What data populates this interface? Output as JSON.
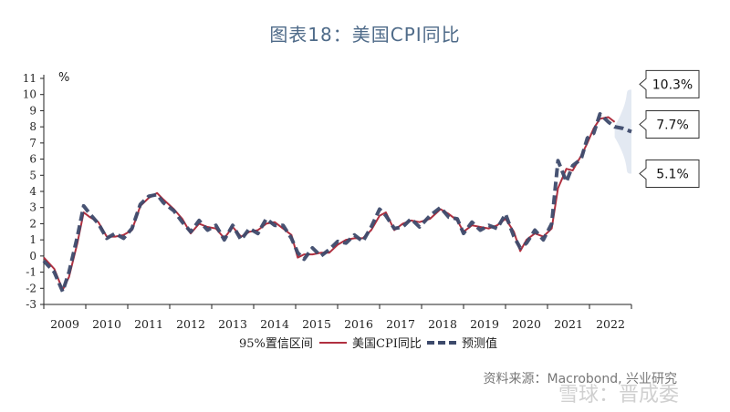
{
  "title": "图表18：美国CPI同比",
  "source": "资料来源：Macrobond, 兴业研究",
  "watermark": "雪球：晋成委",
  "chart_data": {
    "type": "line",
    "title": "图表18：美国CPI同比",
    "ylabel": "%",
    "ylim": [
      -3,
      11
    ],
    "yticks": [
      -3,
      -2,
      -1,
      0,
      1,
      2,
      3,
      4,
      5,
      6,
      7,
      8,
      9,
      10,
      11
    ],
    "xlim": [
      2009,
      2023
    ],
    "years": [
      "2009",
      "2010",
      "2011",
      "2012",
      "2013",
      "2014",
      "2015",
      "2016",
      "2017",
      "2018",
      "2019",
      "2020",
      "2021",
      "2022"
    ],
    "colors": {
      "actual": "#b03040",
      "forecast": "#3d4a6b",
      "band": "#e3e9f2",
      "axis": "#222222"
    },
    "series": [
      {
        "name": "美国CPI同比",
        "x": [
          2009.0,
          2009.25,
          2009.45,
          2009.6,
          2009.8,
          2009.95,
          2010.1,
          2010.3,
          2010.5,
          2010.7,
          2010.9,
          2011.1,
          2011.3,
          2011.5,
          2011.7,
          2011.85,
          2012.1,
          2012.3,
          2012.5,
          2012.7,
          2012.9,
          2013.1,
          2013.3,
          2013.5,
          2013.7,
          2013.9,
          2014.1,
          2014.3,
          2014.5,
          2014.7,
          2014.9,
          2015.05,
          2015.2,
          2015.4,
          2015.6,
          2015.8,
          2016.0,
          2016.2,
          2016.4,
          2016.6,
          2016.8,
          2017.0,
          2017.15,
          2017.35,
          2017.55,
          2017.75,
          2017.95,
          2018.2,
          2018.45,
          2018.65,
          2018.85,
          2019.0,
          2019.2,
          2019.4,
          2019.6,
          2019.8,
          2020.0,
          2020.2,
          2020.35,
          2020.5,
          2020.7,
          2020.9,
          2021.1,
          2021.25,
          2021.45,
          2021.6,
          2021.8,
          2021.95,
          2022.1,
          2022.25,
          2022.45,
          2022.6
        ],
        "y": [
          -0.1,
          -0.8,
          -2.1,
          -1.3,
          0.8,
          2.7,
          2.4,
          2.1,
          1.2,
          1.2,
          1.3,
          1.6,
          3.1,
          3.6,
          3.9,
          3.5,
          2.9,
          2.3,
          1.4,
          2.0,
          1.8,
          1.7,
          1.1,
          1.8,
          1.2,
          1.5,
          1.6,
          2.0,
          2.1,
          1.7,
          1.3,
          -0.1,
          0.1,
          0.1,
          0.2,
          0.2,
          0.7,
          1.0,
          1.1,
          1.1,
          1.6,
          2.5,
          2.7,
          1.6,
          2.0,
          2.2,
          2.1,
          2.3,
          2.9,
          2.6,
          2.2,
          1.5,
          1.9,
          1.8,
          1.7,
          1.9,
          2.3,
          1.5,
          0.3,
          1.0,
          1.4,
          1.2,
          1.7,
          4.2,
          5.4,
          5.3,
          6.2,
          7.0,
          7.9,
          8.5,
          8.6,
          8.3
        ]
      },
      {
        "name": "预测值",
        "x": [
          2009.0,
          2009.25,
          2009.45,
          2009.6,
          2009.8,
          2009.95,
          2010.1,
          2010.3,
          2010.5,
          2010.7,
          2010.9,
          2011.1,
          2011.3,
          2011.5,
          2011.7,
          2011.85,
          2012.1,
          2012.3,
          2012.5,
          2012.7,
          2012.9,
          2013.1,
          2013.3,
          2013.5,
          2013.7,
          2013.9,
          2014.1,
          2014.3,
          2014.5,
          2014.7,
          2014.9,
          2015.05,
          2015.2,
          2015.4,
          2015.6,
          2015.8,
          2016.0,
          2016.2,
          2016.4,
          2016.6,
          2016.8,
          2017.0,
          2017.15,
          2017.35,
          2017.55,
          2017.75,
          2017.95,
          2018.2,
          2018.45,
          2018.65,
          2018.85,
          2019.0,
          2019.2,
          2019.4,
          2019.6,
          2019.8,
          2020.0,
          2020.2,
          2020.35,
          2020.5,
          2020.7,
          2020.9,
          2021.1,
          2021.25,
          2021.45,
          2021.6,
          2021.8,
          2021.95,
          2022.1,
          2022.25,
          2022.45,
          2022.6,
          2022.8,
          2023.0
        ],
        "y": [
          -0.3,
          -1.0,
          -2.2,
          -1.0,
          1.2,
          3.1,
          2.6,
          2.0,
          1.1,
          1.4,
          1.1,
          1.7,
          3.2,
          3.7,
          3.8,
          3.3,
          2.8,
          2.1,
          1.5,
          2.2,
          1.6,
          1.9,
          1.0,
          1.9,
          1.0,
          1.7,
          1.4,
          2.3,
          1.9,
          1.9,
          1.1,
          0.2,
          -0.2,
          0.5,
          0.0,
          0.4,
          0.9,
          0.8,
          1.3,
          0.9,
          1.8,
          2.9,
          2.5,
          1.7,
          1.8,
          2.3,
          1.8,
          2.5,
          3.0,
          2.4,
          2.3,
          1.4,
          2.1,
          1.6,
          1.9,
          1.7,
          2.6,
          1.2,
          0.5,
          0.8,
          1.6,
          1.0,
          2.0,
          5.9,
          4.6,
          5.6,
          6.0,
          7.3,
          7.6,
          8.8,
          8.3,
          8.0,
          7.9,
          7.7
        ]
      }
    ],
    "forecast_band": {
      "name": "95%置信区间",
      "x0": 2022.6,
      "x1": 2023.0,
      "center": 7.7,
      "upper": 10.3,
      "lower": 5.1
    },
    "annotations": [
      "10.3%",
      "7.7%",
      "5.1%"
    ],
    "legend": [
      "95%置信区间",
      "美国CPI同比",
      "预测值"
    ],
    "legend_position": "bottom"
  }
}
